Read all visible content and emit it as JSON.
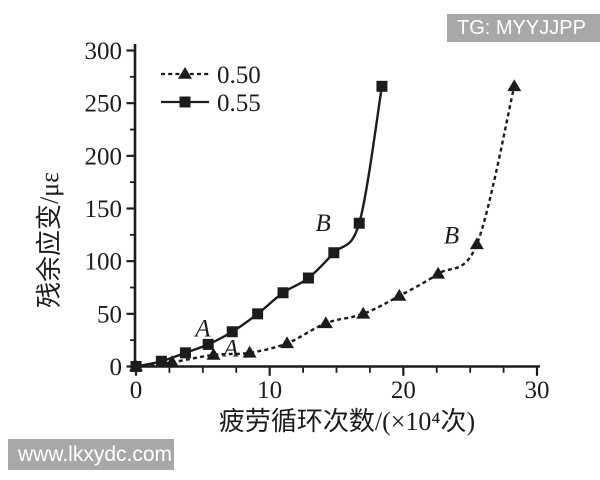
{
  "figure": {
    "background": "#ffffff",
    "ink_color": "#1c1c1c"
  },
  "watermarks": {
    "top_right": "TG: MYYJJPP",
    "bottom_left": "www.lkxydc.com",
    "badge_color": "#a8a8a8",
    "text_color": "#ffffff"
  },
  "chart_data": {
    "type": "line",
    "title": "",
    "xlabel": "疲劳循环次数/(×10⁴次)",
    "ylabel": "残余应变/με",
    "xlim": [
      0,
      30
    ],
    "ylim": [
      0,
      300
    ],
    "x_major_ticks": [
      0,
      10,
      20,
      30
    ],
    "x_minor_tick_step": 2.5,
    "y_major_ticks": [
      0,
      50,
      100,
      150,
      200,
      250,
      300
    ],
    "y_minor_tick_step": 25,
    "grid": false,
    "legend_position": "upper-left-inside",
    "series": [
      {
        "name": "0.50",
        "marker": "triangle",
        "line_style": "dashed",
        "points": [
          [
            0,
            0
          ],
          [
            2.7,
            4
          ],
          [
            5.8,
            11
          ],
          [
            8.5,
            13
          ],
          [
            11.3,
            22
          ],
          [
            14.2,
            41
          ],
          [
            17.0,
            50
          ],
          [
            19.7,
            67
          ],
          [
            22.6,
            88
          ],
          [
            25.5,
            116
          ],
          [
            28.3,
            266
          ]
        ]
      },
      {
        "name": "0.55",
        "marker": "square",
        "line_style": "solid",
        "points": [
          [
            0,
            0
          ],
          [
            1.9,
            5
          ],
          [
            3.7,
            13
          ],
          [
            5.4,
            21
          ],
          [
            7.2,
            33
          ],
          [
            9.1,
            50
          ],
          [
            11.0,
            70
          ],
          [
            12.9,
            84
          ],
          [
            14.8,
            108
          ],
          [
            16.7,
            136
          ],
          [
            18.4,
            266
          ]
        ]
      }
    ],
    "annotations": [
      {
        "text": "A",
        "x": 5.0,
        "y": 37,
        "curve": "0.55"
      },
      {
        "text": "A",
        "x": 7.1,
        "y": 18,
        "curve": "0.50"
      },
      {
        "text": "B",
        "x": 14.0,
        "y": 137,
        "curve": "0.55"
      },
      {
        "text": "B",
        "x": 23.6,
        "y": 125,
        "curve": "0.50"
      }
    ]
  }
}
